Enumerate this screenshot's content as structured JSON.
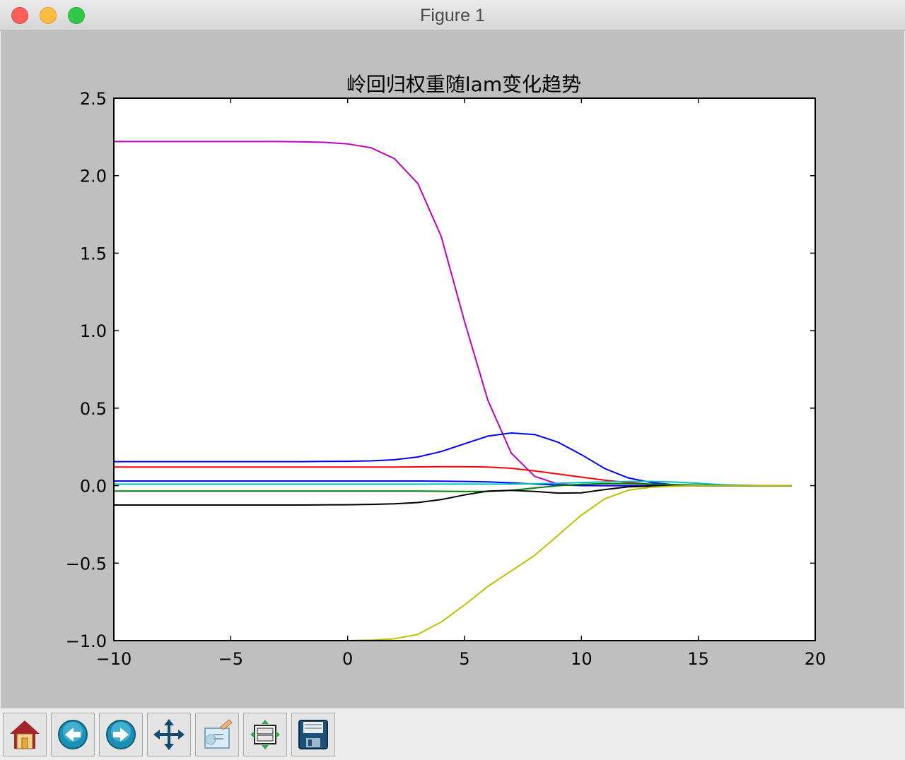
{
  "window": {
    "title": "Figure 1"
  },
  "toolbar": {
    "buttons": [
      {
        "name": "home-button",
        "icon": "home-icon"
      },
      {
        "name": "back-button",
        "icon": "back-arrow-icon"
      },
      {
        "name": "forward-button",
        "icon": "forward-arrow-icon"
      },
      {
        "name": "pan-button",
        "icon": "move-icon"
      },
      {
        "name": "zoom-button",
        "icon": "zoom-rect-icon"
      },
      {
        "name": "subplots-button",
        "icon": "subplots-icon"
      },
      {
        "name": "save-button",
        "icon": "save-icon"
      }
    ]
  },
  "chart_data": {
    "type": "line",
    "title": "岭回归权重随lam变化趋势",
    "xlabel": "",
    "ylabel": "",
    "xlim": [
      -10,
      20
    ],
    "ylim": [
      -1.0,
      2.5
    ],
    "xticks": [
      -10,
      -5,
      0,
      5,
      10,
      15,
      20
    ],
    "xtick_labels": [
      "−10",
      "−5",
      "0",
      "5",
      "10",
      "15",
      "20"
    ],
    "yticks": [
      -1.0,
      -0.5,
      0.0,
      0.5,
      1.0,
      1.5,
      2.0,
      2.5
    ],
    "ytick_labels": [
      "−1.0",
      "−0.5",
      "0.0",
      "0.5",
      "1.0",
      "1.5",
      "2.0",
      "2.5"
    ],
    "grid": false,
    "x": [
      -10,
      -9,
      -8,
      -7,
      -6,
      -5,
      -4,
      -3,
      -2,
      -1,
      0,
      1,
      2,
      3,
      4,
      5,
      6,
      7,
      8,
      9,
      10,
      11,
      12,
      13,
      14,
      15,
      16,
      17,
      18,
      19
    ],
    "series": [
      {
        "color": "#bf00bf",
        "values": [
          2.22,
          2.22,
          2.22,
          2.22,
          2.22,
          2.22,
          2.22,
          2.22,
          2.219,
          2.215,
          2.205,
          2.18,
          2.11,
          1.95,
          1.61,
          1.06,
          0.55,
          0.21,
          0.06,
          0.01,
          0.0,
          0.0,
          0.0,
          0.0,
          0.0,
          0.0,
          0.0,
          0.0,
          0.0,
          0.0
        ]
      },
      {
        "color": "#0000ff",
        "values": [
          0.155,
          0.155,
          0.155,
          0.155,
          0.155,
          0.155,
          0.155,
          0.155,
          0.155,
          0.156,
          0.157,
          0.16,
          0.167,
          0.185,
          0.22,
          0.27,
          0.32,
          0.34,
          0.33,
          0.28,
          0.2,
          0.11,
          0.05,
          0.02,
          0.005,
          0.0,
          0.0,
          0.0,
          0.0,
          0.0
        ]
      },
      {
        "color": "#ff0000",
        "values": [
          0.12,
          0.12,
          0.12,
          0.12,
          0.12,
          0.12,
          0.12,
          0.12,
          0.12,
          0.12,
          0.12,
          0.12,
          0.12,
          0.121,
          0.122,
          0.122,
          0.12,
          0.112,
          0.095,
          0.075,
          0.055,
          0.035,
          0.02,
          0.008,
          0.003,
          0.0,
          0.0,
          0.0,
          0.0,
          0.0
        ]
      },
      {
        "color": "#0000ff",
        "values": [
          0.03,
          0.03,
          0.03,
          0.03,
          0.03,
          0.03,
          0.03,
          0.03,
          0.03,
          0.03,
          0.03,
          0.03,
          0.03,
          0.03,
          0.029,
          0.027,
          0.024,
          0.018,
          0.01,
          0.004,
          0.001,
          0.0,
          0.0,
          0.0,
          0.0,
          0.0,
          0.0,
          0.0,
          0.0,
          0.0
        ]
      },
      {
        "color": "#00bfbf",
        "values": [
          0.01,
          0.01,
          0.01,
          0.01,
          0.01,
          0.01,
          0.01,
          0.01,
          0.01,
          0.01,
          0.01,
          0.01,
          0.01,
          0.01,
          0.01,
          0.01,
          0.01,
          0.011,
          0.012,
          0.015,
          0.02,
          0.024,
          0.027,
          0.027,
          0.023,
          0.015,
          0.006,
          0.002,
          0.0,
          0.0
        ]
      },
      {
        "color": "#008000",
        "values": [
          -0.035,
          -0.035,
          -0.035,
          -0.035,
          -0.035,
          -0.035,
          -0.035,
          -0.035,
          -0.035,
          -0.035,
          -0.035,
          -0.035,
          -0.035,
          -0.035,
          -0.036,
          -0.037,
          -0.037,
          -0.03,
          -0.015,
          0.0,
          0.008,
          0.013,
          0.013,
          0.01,
          0.006,
          0.003,
          0.001,
          0.0,
          0.0,
          0.0
        ]
      },
      {
        "color": "#000000",
        "values": [
          -0.125,
          -0.125,
          -0.125,
          -0.125,
          -0.125,
          -0.125,
          -0.125,
          -0.125,
          -0.125,
          -0.124,
          -0.123,
          -0.121,
          -0.117,
          -0.109,
          -0.09,
          -0.06,
          -0.035,
          -0.03,
          -0.037,
          -0.048,
          -0.046,
          -0.025,
          -0.008,
          -0.003,
          -0.001,
          0.0,
          0.0,
          0.0,
          0.0,
          0.0
        ]
      },
      {
        "color": "#bfbf00",
        "values": [
          -1.05,
          -1.05,
          -1.05,
          -1.05,
          -1.05,
          -1.05,
          -1.05,
          -1.05,
          -1.05,
          -1.05,
          -1.0,
          -0.997,
          -0.988,
          -0.96,
          -0.88,
          -0.77,
          -0.65,
          -0.55,
          -0.45,
          -0.32,
          -0.19,
          -0.085,
          -0.03,
          -0.01,
          -0.003,
          -0.001,
          0.0,
          0.0,
          0.0,
          0.0
        ]
      }
    ]
  }
}
